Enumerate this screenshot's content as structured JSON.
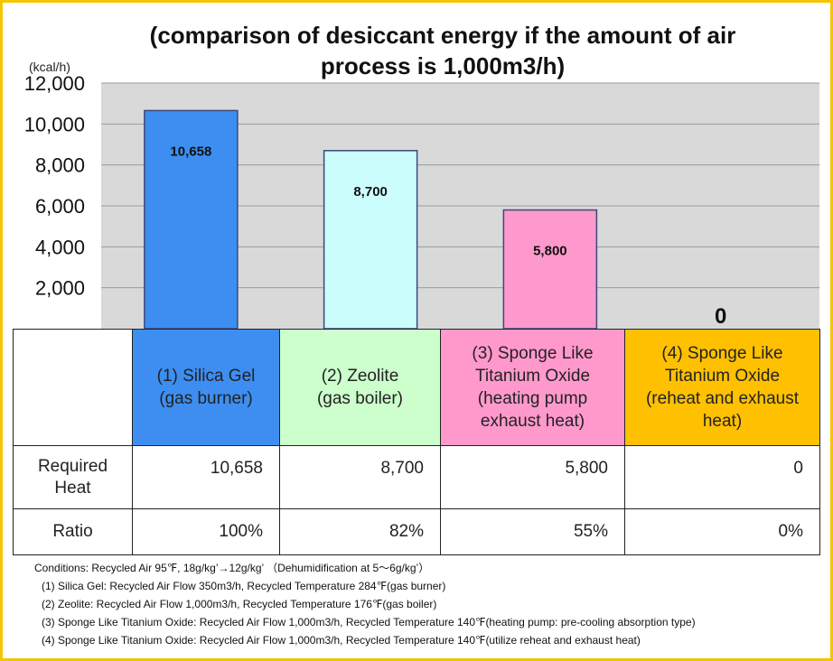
{
  "title": "(comparison of desiccant energy if the amount of air process is 1,000m3/h)",
  "y_unit": "(kcal/h)",
  "chart_data": {
    "type": "bar",
    "title": "(comparison of desiccant energy if the amount of air process is 1,000m3/h)",
    "ylabel": "(kcal/h)",
    "ylim": [
      0,
      12000
    ],
    "yticks": [
      "2,000",
      "4,000",
      "6,000",
      "8,000",
      "10,000",
      "12,000"
    ],
    "ytick_values": [
      2000,
      4000,
      6000,
      8000,
      10000,
      12000
    ],
    "grid": true,
    "categories": [
      "(1) Silica Gel (gas burner)",
      "(2) Zeolite (gas boiler)",
      "(3) Sponge Like Titanium Oxide (heating pump exhaust heat)",
      "(4) Sponge Like Titanium Oxide (reheat and exhaust heat)"
    ],
    "values": [
      10658,
      8700,
      5800,
      0
    ],
    "data_labels": [
      "10,658",
      "8,700",
      "5,800",
      "0"
    ],
    "colors": [
      "#3d8ef0",
      "#ccfdfd",
      "#fd99cc",
      "#ffc000"
    ]
  },
  "table": {
    "headers": [
      {
        "lines": [
          "(1) Silica Gel",
          "(gas burner)"
        ],
        "color": "#3d8ef0"
      },
      {
        "lines": [
          "(2) Zeolite",
          "(gas boiler)"
        ],
        "color": "#ccffcc"
      },
      {
        "lines": [
          "(3) Sponge Like",
          "Titanium Oxide",
          "(heating pump",
          "exhaust heat)"
        ],
        "color": "#ff99cc"
      },
      {
        "lines": [
          "(4) Sponge Like",
          "Titanium Oxide",
          "(reheat and exhaust",
          "heat)"
        ],
        "color": "#ffc000"
      }
    ],
    "rows": [
      {
        "label_lines": [
          "Required",
          "Heat"
        ],
        "cells": [
          "10,658",
          "8,700",
          "5,800",
          "0"
        ]
      },
      {
        "label_lines": [
          "Ratio"
        ],
        "cells": [
          "100%",
          "82%",
          "55%",
          "0%"
        ]
      }
    ]
  },
  "notes": {
    "conditions": "Conditions: Recycled Air 95℉, 18g/kg’→12g/kg’ （Dehumidification at 5～6g/kg’）",
    "items": [
      "(1) Silica Gel: Recycled Air Flow 350m3/h, Recycled Temperature 284℉(gas burner)",
      "(2) Zeolite: Recycled Air Flow 1,000m3/h, Recycled Temperature 176℉(gas boiler)",
      "(3) Sponge Like Titanium Oxide: Recycled Air Flow 1,000m3/h, Recycled Temperature 140℉(heating pump: pre-cooling absorption type)",
      "(4) Sponge Like Titanium Oxide: Recycled Air Flow 1,000m3/h, Recycled Temperature 140℉(utilize reheat and exhaust heat)"
    ]
  }
}
